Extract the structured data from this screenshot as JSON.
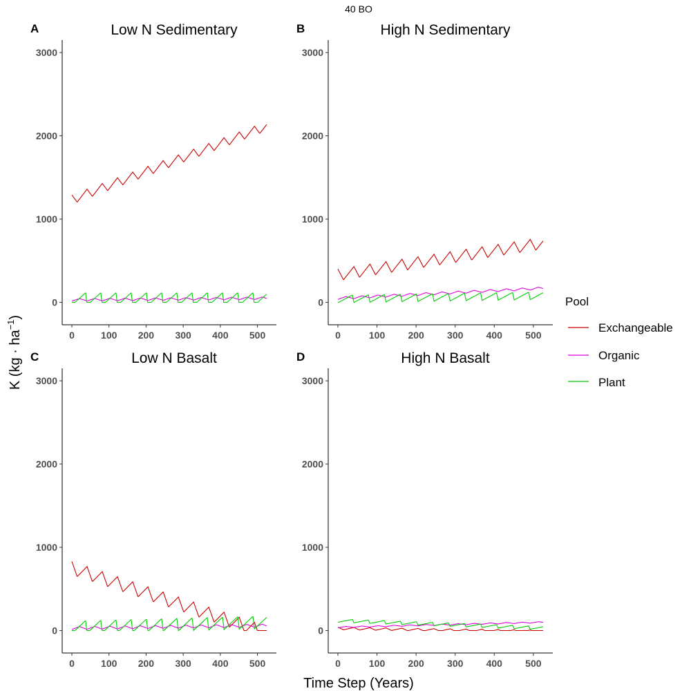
{
  "figure_title": "40 BO",
  "y_axis_label": "K (kg · ha",
  "y_axis_label_sup": "−1",
  "y_axis_label_end": ")",
  "x_axis_label": "Time Step (Years)",
  "legend": {
    "title": "Pool",
    "items": [
      {
        "name": "Exchangeable",
        "color": "#cc0000"
      },
      {
        "name": "Organic",
        "color": "#dd00dd"
      },
      {
        "name": "Plant",
        "color": "#00cc00"
      }
    ]
  },
  "x_ticks": [
    "0",
    "100",
    "200",
    "300",
    "400",
    "500"
  ],
  "y_ticks": [
    "0",
    "1000",
    "2000",
    "3000"
  ],
  "chart_data": [
    {
      "type": "line",
      "letter": "A",
      "title": "Low N Sedimentary",
      "xlim": [
        0,
        525
      ],
      "ylim": [
        0,
        3000
      ],
      "cycle_years": 41,
      "series": [
        {
          "name": "Exchangeable",
          "x": [
            0,
            525
          ],
          "y_start": 1290,
          "y_end": 2170,
          "cycle_amp": 110
        },
        {
          "name": "Organic",
          "x": [
            0,
            525
          ],
          "y_start": 30,
          "y_end": 50,
          "cycle_amp": 60
        },
        {
          "name": "Plant",
          "x": [
            0,
            525
          ],
          "y_start": 40,
          "y_end": 40,
          "cycle_amp": 150
        }
      ]
    },
    {
      "type": "line",
      "letter": "B",
      "title": "High N Sedimentary",
      "xlim": [
        0,
        525
      ],
      "ylim": [
        0,
        3000
      ],
      "cycle_years": 41,
      "series": [
        {
          "name": "Exchangeable",
          "x": [
            0,
            525
          ],
          "y_start": 400,
          "y_end": 780,
          "cycle_amp": 140
        },
        {
          "name": "Organic",
          "x": [
            0,
            525
          ],
          "y_start": 50,
          "y_end": 170,
          "cycle_amp": 60
        },
        {
          "name": "Plant",
          "x": [
            0,
            525
          ],
          "y_start": 40,
          "y_end": 80,
          "cycle_amp": 90
        }
      ]
    },
    {
      "type": "line",
      "letter": "C",
      "title": "Low N Basalt",
      "xlim": [
        0,
        525
      ],
      "ylim": [
        0,
        3000
      ],
      "cycle_years": 41,
      "series": [
        {
          "name": "Exchangeable",
          "x": [
            0,
            525
          ],
          "y_start": 830,
          "y_end": 50,
          "cycle_amp": 160
        },
        {
          "name": "Organic",
          "x": [
            0,
            525
          ],
          "y_start": 30,
          "y_end": 60,
          "cycle_amp": 70
        },
        {
          "name": "Plant",
          "x": [
            0,
            525
          ],
          "y_start": 40,
          "y_end": 100,
          "cycle_amp": 150
        }
      ]
    },
    {
      "type": "line",
      "letter": "D",
      "title": "High N Basalt",
      "xlim": [
        0,
        525
      ],
      "ylim": [
        0,
        3000
      ],
      "cycle_years": 41,
      "series": [
        {
          "name": "Exchangeable",
          "x": [
            0,
            525
          ],
          "y_start": 40,
          "y_end": 5,
          "cycle_amp": 30
        },
        {
          "name": "Organic",
          "x": [
            0,
            525
          ],
          "y_start": 40,
          "y_end": 100,
          "cycle_amp": 30
        },
        {
          "name": "Plant",
          "x": [
            0,
            525
          ],
          "y_start": 120,
          "y_end": 30,
          "cycle_amp": 40
        }
      ]
    }
  ]
}
